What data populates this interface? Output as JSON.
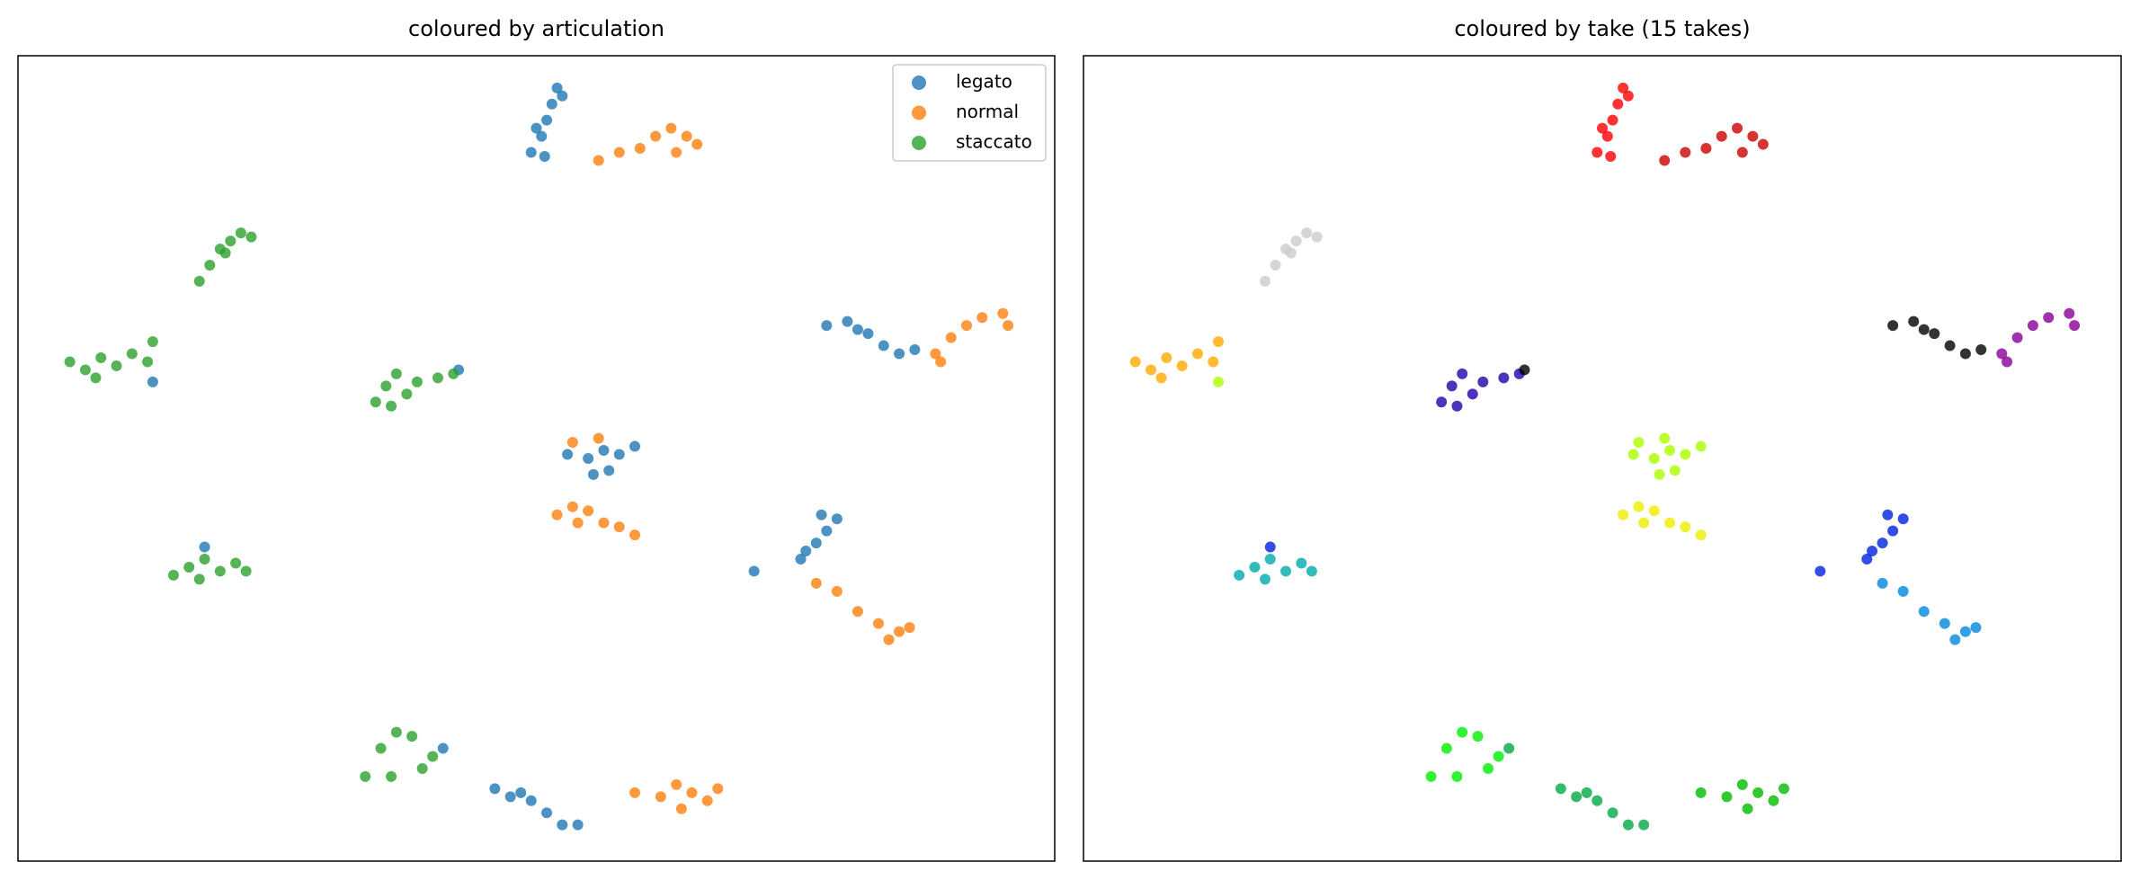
{
  "chart_data": [
    {
      "type": "scatter",
      "title": "coloured by articulation",
      "xlim": [
        0,
        100
      ],
      "ylim": [
        0,
        100
      ],
      "legend": "upper right",
      "series": [
        {
          "name": "legato",
          "color": "#1f77b4",
          "x": [
            49.5,
            50.5,
            51,
            51.5,
            52,
            52.5,
            50,
            50.8,
            78,
            80,
            82,
            83.5,
            85,
            86.5,
            81,
            53,
            55,
            56.5,
            58,
            59.5,
            57,
            55.5,
            77.5,
            79,
            78,
            77,
            76,
            75.5,
            71,
            46,
            47.5,
            49.5,
            51,
            52.5,
            54,
            48.5,
            13,
            42.5,
            18,
            41
          ],
          "values": [
            88,
            90,
            92,
            94,
            96,
            95,
            91,
            87.5,
            66.5,
            67,
            65.5,
            64,
            63,
            63.5,
            66,
            50.5,
            50,
            51,
            50.5,
            51.5,
            48.5,
            48,
            43,
            42.5,
            41,
            39.5,
            38.5,
            37.5,
            36,
            9,
            8,
            7.5,
            6,
            4.5,
            4.5,
            8.5,
            59.5,
            61,
            39,
            14
          ]
        },
        {
          "name": "normal",
          "color": "#ff7f0e",
          "x": [
            56,
            58,
            60,
            61.5,
            63,
            64.5,
            65.5,
            63.5,
            88.5,
            90,
            91.5,
            93,
            95,
            95.5,
            89,
            52,
            53.5,
            55,
            56.5,
            58,
            59.5,
            54,
            77,
            79,
            81,
            83,
            85,
            86,
            84,
            59.5,
            62,
            63.5,
            65,
            66.5,
            64,
            67.5,
            53.5,
            56
          ],
          "values": [
            87,
            88,
            88.5,
            90,
            91,
            90,
            89,
            88,
            63,
            65,
            66.5,
            67.5,
            68,
            66.5,
            62,
            43,
            44,
            43.5,
            42,
            41.5,
            40.5,
            42,
            34.5,
            33.5,
            31,
            29.5,
            28.5,
            29,
            27.5,
            8.5,
            8,
            9.5,
            8.5,
            7.5,
            6.5,
            9,
            52,
            52.5
          ]
        },
        {
          "name": "staccato",
          "color": "#2ca02c",
          "x": [
            17.5,
            18.5,
            19.5,
            20.5,
            21.5,
            22.5,
            20,
            5,
            6.5,
            8,
            9.5,
            11,
            12.5,
            13,
            7.5,
            34.5,
            35.5,
            36.5,
            37.5,
            38.5,
            36,
            40.5,
            42,
            15,
            16.5,
            18,
            19.5,
            21,
            22,
            17.5,
            33.5,
            35,
            36.5,
            38,
            39,
            40,
            36
          ],
          "values": [
            72,
            74,
            76,
            77,
            78,
            77.5,
            75.5,
            62,
            61,
            62.5,
            61.5,
            63,
            62,
            64.5,
            60,
            57,
            59,
            60.5,
            58,
            59.5,
            56.5,
            60,
            60.5,
            35.5,
            36.5,
            37.5,
            36,
            37,
            36,
            35,
            10.5,
            14,
            16,
            15.5,
            11.5,
            13,
            10.5
          ]
        }
      ]
    },
    {
      "type": "scatter",
      "title": "coloured by take (15 takes)",
      "xlim": [
        0,
        100
      ],
      "ylim": [
        0,
        100
      ],
      "series": [
        {
          "color": "#ff0000",
          "x": [
            49.5,
            50.5,
            51,
            51.5,
            52,
            52.5,
            50,
            50.8
          ],
          "values": [
            88,
            90,
            92,
            94,
            96,
            95,
            91,
            87.5
          ]
        },
        {
          "color": "#cc0000",
          "x": [
            56,
            58,
            60,
            61.5,
            63,
            64.5,
            65.5,
            63.5
          ],
          "values": [
            87,
            88,
            88.5,
            90,
            91,
            90,
            89,
            88
          ]
        },
        {
          "color": "#cccccc",
          "x": [
            17.5,
            18.5,
            19.5,
            20.5,
            21.5,
            22.5,
            20
          ],
          "values": [
            72,
            74,
            76,
            77,
            78,
            77.5,
            75.5
          ]
        },
        {
          "color": "#ffaa00",
          "x": [
            5,
            6.5,
            8,
            9.5,
            11,
            12.5,
            13,
            7.5
          ],
          "values": [
            62,
            61,
            62.5,
            61.5,
            63,
            62,
            64.5,
            60
          ]
        },
        {
          "color": "#2200aa",
          "x": [
            34.5,
            35.5,
            36.5,
            37.5,
            38.5,
            36,
            40.5,
            42
          ],
          "values": [
            57,
            59,
            60.5,
            58,
            59.5,
            56.5,
            60,
            60.5
          ]
        },
        {
          "color": "#000000",
          "x": [
            78,
            80,
            82,
            83.5,
            85,
            86.5,
            81,
            42.5
          ],
          "values": [
            66.5,
            67,
            65.5,
            64,
            63,
            63.5,
            66,
            61
          ]
        },
        {
          "color": "#880099",
          "x": [
            88.5,
            90,
            91.5,
            93,
            95,
            95.5,
            89
          ],
          "values": [
            63,
            65,
            66.5,
            67.5,
            68,
            66.5,
            62
          ]
        },
        {
          "color": "#aaff00",
          "x": [
            53,
            55,
            56.5,
            58,
            59.5,
            57,
            55.5,
            13,
            53.5,
            56
          ],
          "values": [
            50.5,
            50,
            51,
            50.5,
            51.5,
            48.5,
            48,
            59.5,
            52,
            52.5
          ]
        },
        {
          "color": "#eeee00",
          "x": [
            52,
            53.5,
            55,
            56.5,
            58,
            59.5,
            54
          ],
          "values": [
            43,
            44,
            43.5,
            42,
            41.5,
            40.5,
            42
          ]
        },
        {
          "color": "#0022dd",
          "x": [
            77.5,
            79,
            78,
            77,
            76,
            75.5,
            71,
            18
          ],
          "values": [
            43,
            42.5,
            41,
            39.5,
            38.5,
            37.5,
            36,
            39
          ]
        },
        {
          "color": "#0088dd",
          "x": [
            77,
            79,
            81,
            83,
            85,
            86,
            84
          ],
          "values": [
            34.5,
            33.5,
            31,
            29.5,
            28.5,
            29,
            27.5
          ]
        },
        {
          "color": "#00aaaa",
          "x": [
            15,
            16.5,
            18,
            19.5,
            21,
            22,
            17.5
          ],
          "values": [
            35.5,
            36.5,
            37.5,
            36,
            37,
            36,
            35
          ]
        },
        {
          "color": "#00ee00",
          "x": [
            33.5,
            35,
            36.5,
            38,
            39,
            40,
            36
          ],
          "values": [
            10.5,
            14,
            16,
            15.5,
            11.5,
            13,
            10.5
          ]
        },
        {
          "color": "#00aa44",
          "x": [
            46,
            47.5,
            49.5,
            51,
            52.5,
            54,
            48.5,
            41
          ],
          "values": [
            9,
            8,
            7.5,
            6,
            4.5,
            4.5,
            8.5,
            14
          ]
        },
        {
          "color": "#00bb00",
          "x": [
            59.5,
            62,
            63.5,
            65,
            66.5,
            64,
            67.5
          ],
          "values": [
            8.5,
            8,
            9.5,
            8.5,
            7.5,
            6.5,
            9
          ]
        }
      ]
    }
  ]
}
